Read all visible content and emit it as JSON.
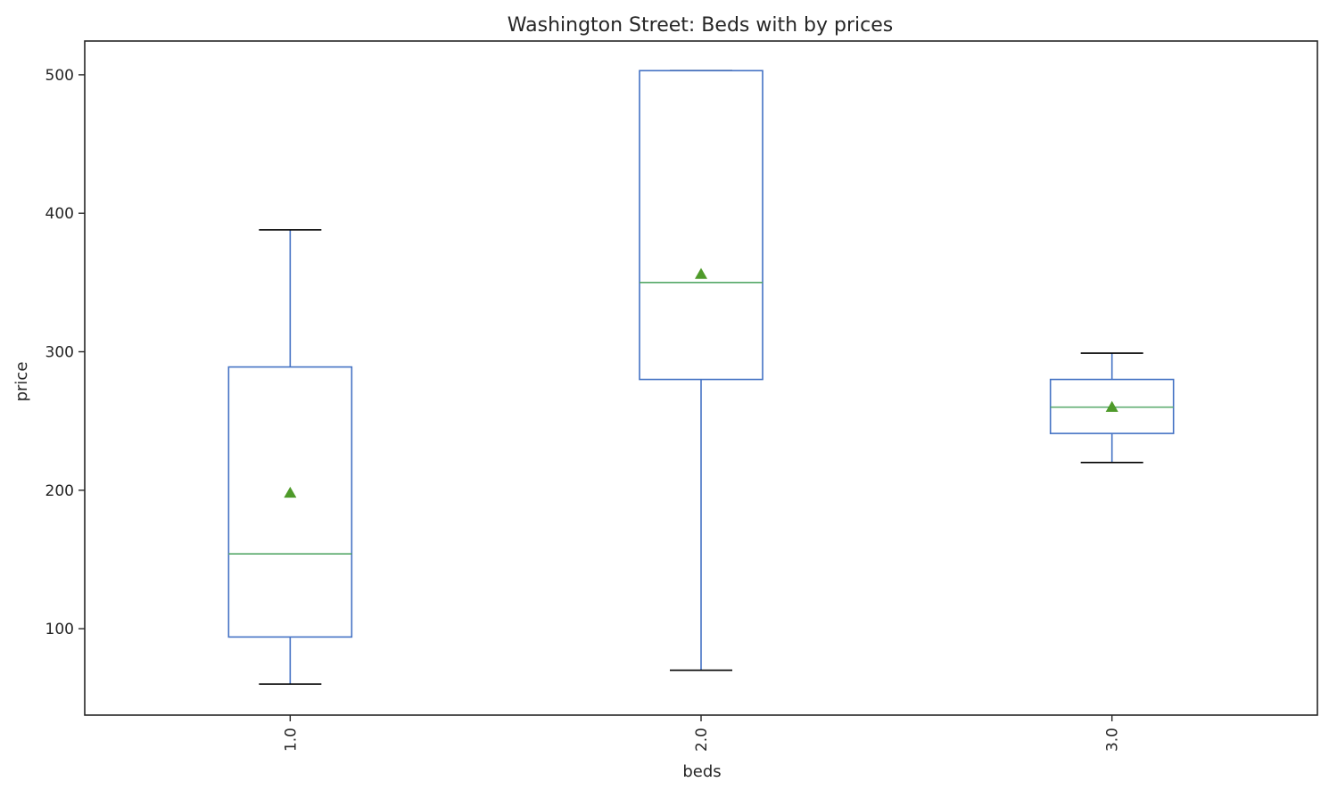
{
  "chart_data": {
    "type": "box",
    "title": "Washington Street: Beds with by prices",
    "xlabel": "beds",
    "ylabel": "price",
    "ylim": [
      37.6,
      524.4
    ],
    "yticks": [
      100,
      200,
      300,
      400,
      500
    ],
    "ytick_labels": [
      "100",
      "200",
      "300",
      "400",
      "500"
    ],
    "categories": [
      "1.0",
      "2.0",
      "3.0"
    ],
    "boxes": [
      {
        "category": "1.0",
        "whisker_low": 60,
        "q1": 94,
        "median": 154,
        "q3": 289,
        "whisker_high": 388,
        "mean": 198
      },
      {
        "category": "2.0",
        "whisker_low": 70,
        "q1": 280,
        "median": 350,
        "q3": 503,
        "whisker_high": 503,
        "mean": 356
      },
      {
        "category": "3.0",
        "whisker_low": 220,
        "q1": 241,
        "median": 260,
        "q3": 280,
        "whisker_high": 299,
        "mean": 260
      }
    ],
    "colors": {
      "box": "#4472c4",
      "median": "#55a868",
      "mean_marker": "#4e9a2a",
      "cap": "#000000"
    },
    "grid": false,
    "legend": "none"
  }
}
